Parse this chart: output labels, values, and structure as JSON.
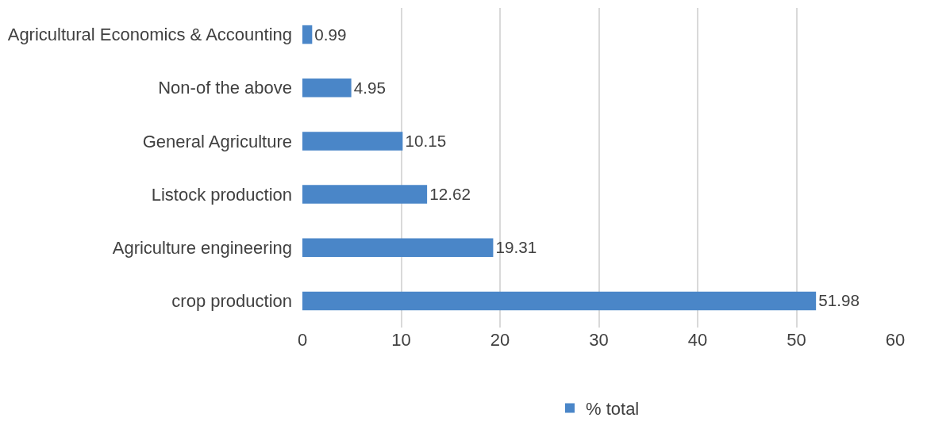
{
  "chart_data": {
    "type": "bar",
    "orientation": "horizontal",
    "categories": [
      "Agricultural Economics & Accounting",
      "Non-of the above",
      "General Agriculture",
      "Listock production",
      "Agriculture engineering",
      "crop production"
    ],
    "series": [
      {
        "name": "% total",
        "color": "#4a86c8",
        "values": [
          0.99,
          4.95,
          10.15,
          12.62,
          19.31,
          51.98
        ]
      }
    ],
    "xlim": [
      0,
      60
    ],
    "xticks": [
      0,
      10,
      20,
      30,
      40,
      50,
      60
    ],
    "grid": "x",
    "legend": "bottom",
    "data_labels": true
  }
}
